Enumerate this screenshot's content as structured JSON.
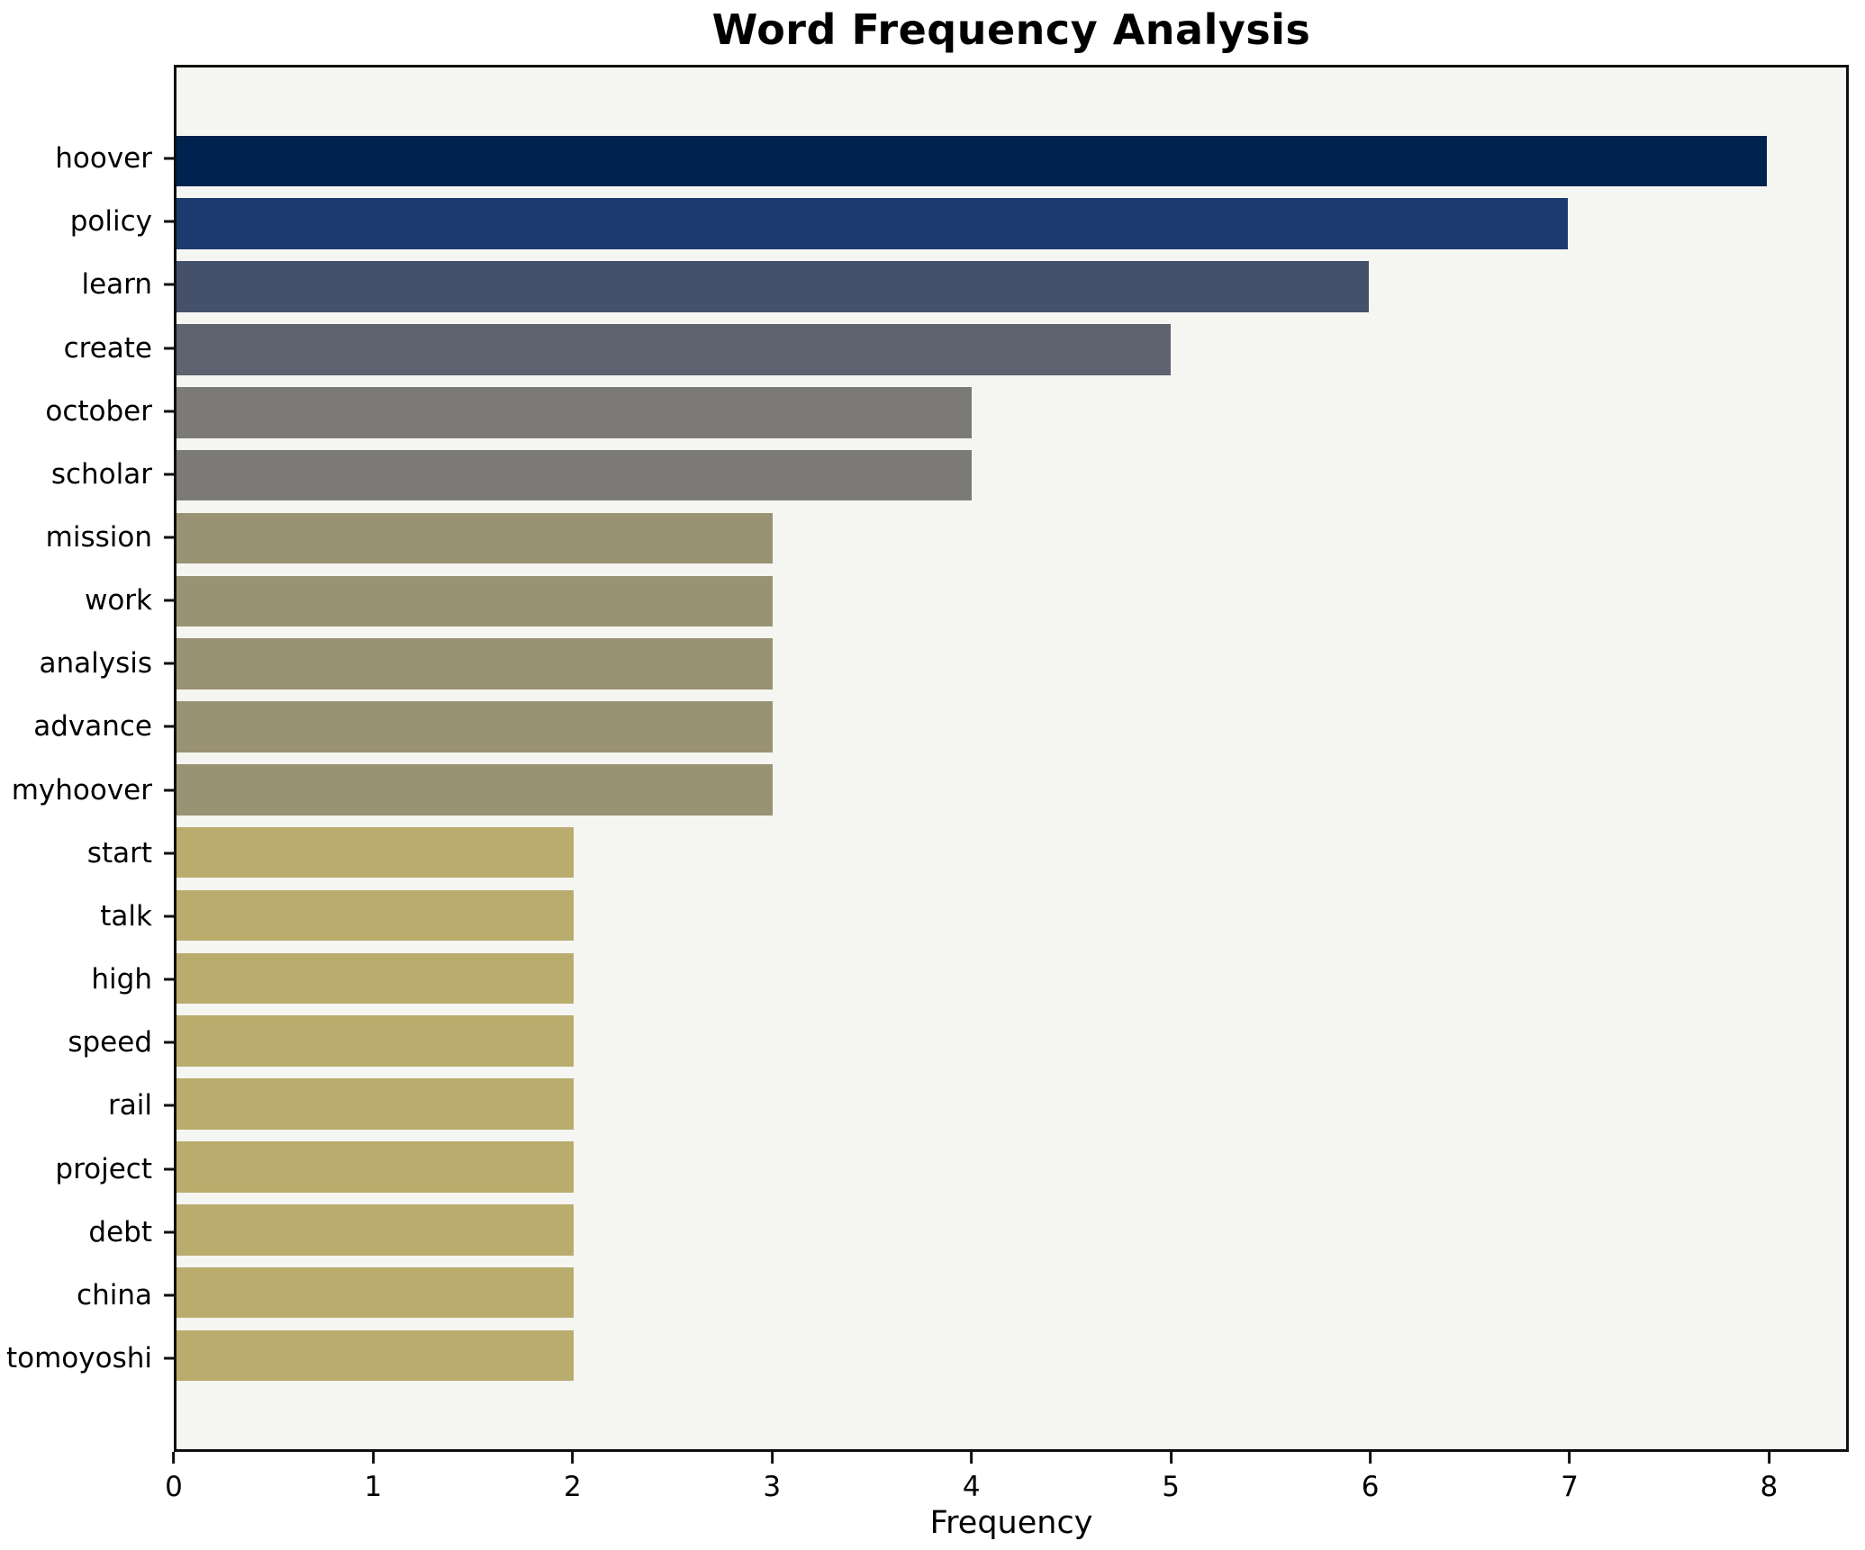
{
  "title": "Word Frequency Analysis",
  "chart_data": {
    "type": "bar",
    "orientation": "horizontal",
    "title": "Word Frequency Analysis",
    "xlabel": "Frequency",
    "ylabel": "",
    "categories": [
      "hoover",
      "policy",
      "learn",
      "create",
      "october",
      "scholar",
      "mission",
      "work",
      "analysis",
      "advance",
      "myhoover",
      "start",
      "talk",
      "high",
      "speed",
      "rail",
      "project",
      "debt",
      "china",
      "tomoyoshi"
    ],
    "values": [
      8,
      7,
      6,
      5,
      4,
      4,
      3,
      3,
      3,
      3,
      3,
      2,
      2,
      2,
      2,
      2,
      2,
      2,
      2,
      2
    ],
    "bar_colors": [
      "#00224e",
      "#1d3a6e",
      "#45506b",
      "#5e636f",
      "#7b7a76",
      "#7b7a76",
      "#999273",
      "#999273",
      "#999273",
      "#999273",
      "#999273",
      "#b9ac6c",
      "#b9ac6c",
      "#b9ac6c",
      "#b9ac6c",
      "#b9ac6c",
      "#b9ac6c",
      "#b9ac6c",
      "#b9ac6c",
      "#b9ac6c"
    ],
    "xlim": [
      0,
      8.4
    ],
    "x_ticks": [
      0,
      1,
      2,
      3,
      4,
      5,
      6,
      7,
      8
    ],
    "grid": false,
    "legend": null,
    "plot_background": "#f5f5f2",
    "figure_background": "#ffffff",
    "spine_color": "#0f0f0f",
    "colormap": "cividis"
  }
}
